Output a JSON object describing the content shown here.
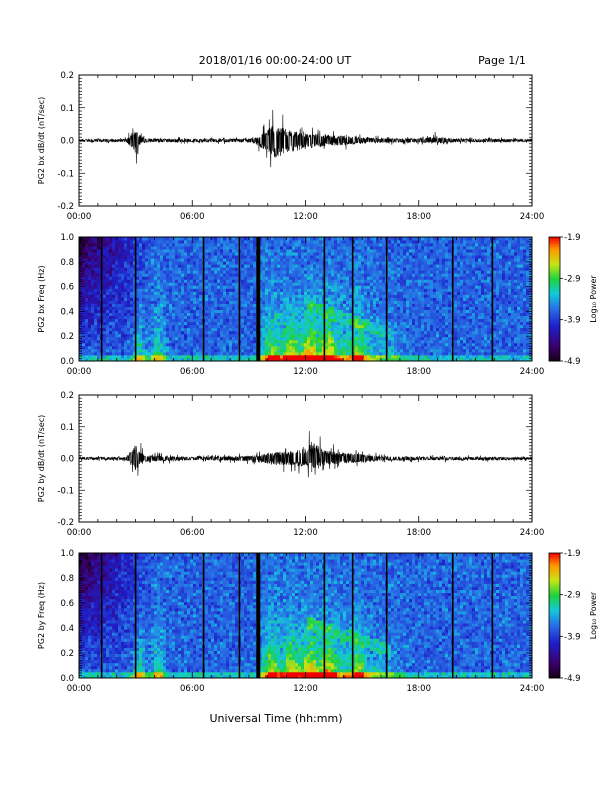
{
  "header": {
    "title": "2018/01/16  00:00-24:00 UT",
    "page": "Page 1/1"
  },
  "footer": {
    "xlabel": "Universal Time (hh:mm)"
  },
  "chart_data": [
    {
      "type": "line",
      "id": "bx_dbdt",
      "ylabel": "PG2 bx dB/dt (nT/sec)",
      "xlim": [
        "00:00",
        "24:00"
      ],
      "xticks": [
        "00:00",
        "06:00",
        "12:00",
        "18:00",
        "24:00"
      ],
      "ylim": [
        -0.2,
        0.2
      ],
      "yticks": [
        "0.2",
        "0.1",
        "0.0",
        "-0.1",
        "-0.2"
      ],
      "series": [
        {
          "x_hours": [
            0,
            2.5,
            3.0,
            3.2,
            3.5,
            6.0,
            9.0,
            9.5,
            10.0,
            10.3,
            10.6,
            11.0,
            11.4,
            11.8,
            12.4,
            13.0,
            13.6,
            14.0,
            15.0,
            16.0,
            18.0,
            19.0,
            20.0,
            22.0,
            24.0
          ],
          "amp_max": [
            0.008,
            0.01,
            0.06,
            0.05,
            0.012,
            0.01,
            0.012,
            0.02,
            0.08,
            0.1,
            0.09,
            0.08,
            0.06,
            0.05,
            0.045,
            0.04,
            0.03,
            0.035,
            0.02,
            0.015,
            0.012,
            0.03,
            0.01,
            0.01,
            0.008
          ],
          "amp_min": [
            -0.008,
            -0.01,
            -0.08,
            -0.04,
            -0.012,
            -0.01,
            -0.012,
            -0.03,
            -0.09,
            -0.12,
            -0.11,
            -0.09,
            -0.08,
            -0.06,
            -0.05,
            -0.04,
            -0.035,
            -0.03,
            -0.02,
            -0.015,
            -0.012,
            -0.02,
            -0.01,
            -0.01,
            -0.008
          ]
        }
      ]
    },
    {
      "type": "heatmap",
      "id": "bx_spec",
      "ylabel": "PG2 bx Freq (Hz)",
      "xlim": [
        "00:00",
        "24:00"
      ],
      "xticks": [
        "00:00",
        "06:00",
        "12:00",
        "18:00",
        "24:00"
      ],
      "ylim": [
        0.0,
        1.0
      ],
      "yticks": [
        "1.0",
        "0.8",
        "0.6",
        "0.4",
        "0.2",
        "0.0"
      ],
      "colorbar": {
        "label": "Log₁₀ Power",
        "ticks": [
          "-1.9",
          "-2.9",
          "-3.9",
          "-4.9"
        ],
        "range": [
          -4.9,
          -1.9
        ]
      },
      "gap_lines_hours": [
        1.2,
        3.0,
        6.6,
        8.5,
        9.5,
        13.0,
        14.5,
        16.3,
        19.8,
        21.9
      ],
      "activity_peaks_hours": [
        3.2,
        4.2,
        10.2,
        11.2,
        12.2,
        13.2,
        14.8
      ]
    },
    {
      "type": "line",
      "id": "by_dbdt",
      "ylabel": "PG2 by dB/dt (nT/sec)",
      "xlim": [
        "00:00",
        "24:00"
      ],
      "xticks": [
        "00:00",
        "06:00",
        "12:00",
        "18:00",
        "24:00"
      ],
      "ylim": [
        -0.2,
        0.2
      ],
      "yticks": [
        "0.2",
        "0.1",
        "0.0",
        "-0.1",
        "-0.2"
      ],
      "series": [
        {
          "x_hours": [
            0,
            2.5,
            3.0,
            3.2,
            3.5,
            4.0,
            6.0,
            9.5,
            10.0,
            10.5,
            11.0,
            11.5,
            12.0,
            12.3,
            13.0,
            13.5,
            14.0,
            15.0,
            16.0,
            18.0,
            20.0,
            22.0,
            24.0
          ],
          "amp_max": [
            0.008,
            0.01,
            0.1,
            0.06,
            0.02,
            0.02,
            0.01,
            0.02,
            0.04,
            0.05,
            0.045,
            0.06,
            0.08,
            0.12,
            0.06,
            0.05,
            0.04,
            0.03,
            0.015,
            0.012,
            0.01,
            0.01,
            0.008
          ],
          "amp_min": [
            -0.008,
            -0.01,
            -0.09,
            -0.04,
            -0.02,
            -0.02,
            -0.01,
            -0.02,
            -0.04,
            -0.05,
            -0.045,
            -0.05,
            -0.06,
            -0.07,
            -0.05,
            -0.04,
            -0.035,
            -0.03,
            -0.015,
            -0.012,
            -0.01,
            -0.01,
            -0.008
          ]
        }
      ]
    },
    {
      "type": "heatmap",
      "id": "by_spec",
      "ylabel": "PG2 by Freq (Hz)",
      "xlim": [
        "00:00",
        "24:00"
      ],
      "xticks": [
        "00:00",
        "06:00",
        "12:00",
        "18:00",
        "24:00"
      ],
      "ylim": [
        0.0,
        1.0
      ],
      "yticks": [
        "1.0",
        "0.8",
        "0.6",
        "0.4",
        "0.2",
        "0.0"
      ],
      "colorbar": {
        "label": "Log₁₀ Power",
        "ticks": [
          "-1.9",
          "-2.9",
          "-3.9",
          "-4.9"
        ],
        "range": [
          -4.9,
          -1.9
        ]
      },
      "gap_lines_hours": [
        1.2,
        3.0,
        6.6,
        8.5,
        9.5,
        13.0,
        14.5,
        16.3,
        19.8,
        21.9
      ],
      "activity_peaks_hours": [
        3.2,
        4.2,
        10.2,
        11.2,
        12.2,
        13.2,
        14.8
      ]
    }
  ]
}
